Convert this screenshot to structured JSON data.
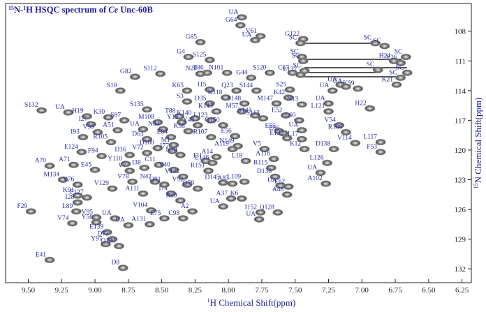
{
  "chart_data": {
    "type": "hsqc",
    "title": [
      "15",
      "N-",
      "1",
      "H HSQC spectrum of ",
      "Ce",
      " Unc-60B"
    ],
    "x_label": [
      "1",
      "H Chemical Shift(ppm)"
    ],
    "y_label": [
      "15",
      "N Chemical Shift(ppm)"
    ],
    "xlim": [
      9.67,
      6.18
    ],
    "ylim": [
      105.2,
      133.4
    ],
    "xticks": [
      {
        "value": 9.5,
        "label": "9.50"
      },
      9.25,
      {
        "value": 9.0,
        "label": "9.00"
      },
      8.75,
      {
        "value": 8.5,
        "label": "8.50"
      },
      8.25,
      {
        "value": 8.0,
        "label": "8.00"
      },
      7.75,
      {
        "value": 7.5,
        "label": "7.50"
      },
      7.25,
      {
        "value": 7.0,
        "label": "7.00"
      },
      6.75,
      {
        "value": 6.5,
        "label": "6.50"
      },
      6.25
    ],
    "yticks": [
      108,
      111,
      114,
      117,
      120,
      123,
      126,
      129,
      132
    ],
    "peak_color": "#8c8c8c",
    "peaks": [
      {
        "label": "G64",
        "x": 7.91,
        "y": 107.4
      },
      {
        "label": "UA",
        "x": 7.9,
        "y": 106.6
      },
      {
        "label": "V61",
        "x": 7.76,
        "y": 108.5
      },
      {
        "label": "UA",
        "x": 7.8,
        "y": 108.9
      },
      {
        "label": "G85",
        "x": 8.21,
        "y": 109.1
      },
      {
        "label": "G122",
        "x": 7.44,
        "y": 108.8
      },
      {
        "label": "SC",
        "x": 7.46,
        "y": 109.2
      },
      {
        "label": "SC",
        "x": 6.9,
        "y": 109.2
      },
      {
        "label": "SC",
        "x": 6.83,
        "y": 109.5
      },
      {
        "label": "SC",
        "x": 7.45,
        "y": 110.6
      },
      {
        "label": "G4",
        "x": 8.3,
        "y": 110.6
      },
      {
        "label": "S125",
        "x": 8.14,
        "y": 110.9
      },
      {
        "label": "T86",
        "x": 8.16,
        "y": 112.2
      },
      {
        "label": "N101",
        "x": 8.01,
        "y": 112.2
      },
      {
        "label": "S112",
        "x": 8.51,
        "y": 112.3
      },
      {
        "label": "G82",
        "x": 8.7,
        "y": 112.6
      },
      {
        "label": "N20",
        "x": 8.21,
        "y": 112.3
      },
      {
        "label": "G44",
        "x": 7.83,
        "y": 112.7
      },
      {
        "label": "S120",
        "x": 7.69,
        "y": 112.2
      },
      {
        "label": "H24",
        "x": 6.76,
        "y": 111.0
      },
      {
        "label": "SC",
        "x": 6.67,
        "y": 110.6
      },
      {
        "label": "Y26",
        "x": 6.71,
        "y": 111.2
      },
      {
        "label": "SC",
        "x": 7.44,
        "y": 111.0
      },
      {
        "label": "SC",
        "x": 7.43,
        "y": 112.0
      },
      {
        "label": "SC",
        "x": 6.88,
        "y": 111.9
      },
      {
        "label": "SC",
        "x": 6.66,
        "y": 112.2
      },
      {
        "label": "SC",
        "x": 6.71,
        "y": 112.7
      },
      {
        "label": "C67",
        "x": 7.52,
        "y": 112.2
      },
      {
        "label": "L137",
        "x": 7.46,
        "y": 112.4
      },
      {
        "label": "S10",
        "x": 8.81,
        "y": 114.0
      },
      {
        "label": "I15",
        "x": 8.14,
        "y": 113.9
      },
      {
        "label": "S25",
        "x": 7.54,
        "y": 113.9
      },
      {
        "label": "UA",
        "x": 7.22,
        "y": 114.0
      },
      {
        "label": "UA",
        "x": 7.16,
        "y": 113.4
      },
      {
        "label": "K59",
        "x": 7.03,
        "y": 113.8
      },
      {
        "label": "UA",
        "x": 7.12,
        "y": 113.6
      },
      {
        "label": "K21",
        "x": 6.74,
        "y": 113.4
      },
      {
        "label": "K65",
        "x": 8.31,
        "y": 114.0
      },
      {
        "label": "Q23",
        "x": 7.94,
        "y": 114.0
      },
      {
        "label": "S144",
        "x": 7.79,
        "y": 114.0
      },
      {
        "label": "K118",
        "x": 8.02,
        "y": 114.7
      },
      {
        "label": "S3",
        "x": 8.31,
        "y": 115.1
      },
      {
        "label": "D35",
        "x": 8.14,
        "y": 115.3
      },
      {
        "label": "M147",
        "x": 7.64,
        "y": 115.3
      },
      {
        "label": "K42",
        "x": 7.55,
        "y": 114.7
      },
      {
        "label": "S148",
        "x": 7.88,
        "y": 115.3
      },
      {
        "label": "N13",
        "x": 7.45,
        "y": 115.4
      },
      {
        "label": "UA",
        "x": 7.25,
        "y": 115.3
      },
      {
        "label": "S132",
        "x": 9.4,
        "y": 116.0
      },
      {
        "label": "UA",
        "x": 9.2,
        "y": 116.2
      },
      {
        "label": "H19",
        "x": 9.06,
        "y": 116.6
      },
      {
        "label": "K30",
        "x": 8.9,
        "y": 116.7
      },
      {
        "label": "S135",
        "x": 8.61,
        "y": 115.9
      },
      {
        "label": "T88",
        "x": 8.37,
        "y": 116.6
      },
      {
        "label": "K140",
        "x": 8.25,
        "y": 116.8
      },
      {
        "label": "K143",
        "x": 8.09,
        "y": 116.1
      },
      {
        "label": "M57",
        "x": 7.9,
        "y": 116.1
      },
      {
        "label": "S141",
        "x": 7.8,
        "y": 116.5
      },
      {
        "label": "S113",
        "x": 7.74,
        "y": 116.8
      },
      {
        "label": "E52",
        "x": 7.57,
        "y": 116.5
      },
      {
        "label": "L121",
        "x": 7.25,
        "y": 116.1
      },
      {
        "label": "H22",
        "x": 6.94,
        "y": 115.8
      },
      {
        "label": "S87",
        "x": 8.78,
        "y": 117.0
      },
      {
        "label": "M108",
        "x": 8.53,
        "y": 117.2
      },
      {
        "label": "N34",
        "x": 8.49,
        "y": 117.9
      },
      {
        "label": "UA",
        "x": 8.64,
        "y": 117.9
      },
      {
        "label": "D63",
        "x": 8.61,
        "y": 118.9
      },
      {
        "label": "I27",
        "x": 9.03,
        "y": 117.4
      },
      {
        "label": "I93",
        "x": 9.09,
        "y": 118.7
      },
      {
        "label": "V39",
        "x": 8.98,
        "y": 118.2
      },
      {
        "label": "A51",
        "x": 8.83,
        "y": 118.0
      },
      {
        "label": "Y15",
        "x": 8.35,
        "y": 117.2
      },
      {
        "label": "Y43",
        "x": 8.23,
        "y": 117.5
      },
      {
        "label": "L123",
        "x": 8.13,
        "y": 117.0
      },
      {
        "label": "K58",
        "x": 8.3,
        "y": 118.1
      },
      {
        "label": "E84",
        "x": 8.43,
        "y": 118.7
      },
      {
        "label": "M1",
        "x": 8.41,
        "y": 119.5
      },
      {
        "label": "R107",
        "x": 8.13,
        "y": 118.7
      },
      {
        "label": "Q150",
        "x": 8.04,
        "y": 117.5
      },
      {
        "label": "E56",
        "x": 7.95,
        "y": 118.6
      },
      {
        "label": "N149",
        "x": 7.93,
        "y": 119.6
      },
      {
        "label": "E55",
        "x": 7.62,
        "y": 118.1
      },
      {
        "label": "L60",
        "x": 7.47,
        "y": 117.0
      },
      {
        "label": "E66",
        "x": 7.59,
        "y": 118.3
      },
      {
        "label": "E133",
        "x": 7.56,
        "y": 118.8
      },
      {
        "label": "UA",
        "x": 7.45,
        "y": 118.0
      },
      {
        "label": "L17",
        "x": 7.45,
        "y": 118.9
      },
      {
        "label": "V54",
        "x": 7.17,
        "y": 117.5
      },
      {
        "label": "R106",
        "x": 7.12,
        "y": 118.2
      },
      {
        "label": "V114",
        "x": 7.05,
        "y": 119.3
      },
      {
        "label": "L117",
        "x": 6.86,
        "y": 119.2
      },
      {
        "label": "F53",
        "x": 6.86,
        "y": 120.2
      },
      {
        "label": "D138",
        "x": 7.21,
        "y": 119.9
      },
      {
        "label": "L126",
        "x": 7.26,
        "y": 121.3
      },
      {
        "label": "R105",
        "x": 8.88,
        "y": 119.2
      },
      {
        "label": "E124",
        "x": 9.1,
        "y": 120.2
      },
      {
        "label": "F94",
        "x": 8.95,
        "y": 120.6
      },
      {
        "label": "D16",
        "x": 8.74,
        "y": 120.5
      },
      {
        "label": "V72",
        "x": 8.61,
        "y": 120.3
      },
      {
        "label": "D100",
        "x": 8.53,
        "y": 119.8
      },
      {
        "label": "I77",
        "x": 8.42,
        "y": 120.1
      },
      {
        "label": "N90",
        "x": 8.36,
        "y": 120.5
      },
      {
        "label": "I31",
        "x": 8.17,
        "y": 121.1
      },
      {
        "label": "A14",
        "x": 8.09,
        "y": 120.7
      },
      {
        "label": "A119",
        "x": 7.97,
        "y": 119.9
      },
      {
        "label": "V5",
        "x": 7.73,
        "y": 119.9
      },
      {
        "label": "K12",
        "x": 7.43,
        "y": 119.9
      },
      {
        "label": "A70",
        "x": 9.34,
        "y": 121.6
      },
      {
        "label": "A71",
        "x": 9.16,
        "y": 121.5
      },
      {
        "label": "E45",
        "x": 9.0,
        "y": 122.0
      },
      {
        "label": "M134",
        "x": 9.24,
        "y": 123.0
      },
      {
        "label": "V76",
        "x": 9.13,
        "y": 123.5
      },
      {
        "label": "Y110",
        "x": 8.77,
        "y": 121.4
      },
      {
        "label": "V7",
        "x": 8.74,
        "y": 122.1
      },
      {
        "label": "I38",
        "x": 8.63,
        "y": 121.8
      },
      {
        "label": "C11",
        "x": 8.52,
        "y": 121.5
      },
      {
        "label": "V40",
        "x": 8.41,
        "y": 122.0
      },
      {
        "label": "V142",
        "x": 8.34,
        "y": 122.7
      },
      {
        "label": "L146",
        "x": 8.12,
        "y": 121.3
      },
      {
        "label": "R151",
        "x": 8.15,
        "y": 122.1
      },
      {
        "label": "L18",
        "x": 7.87,
        "y": 121.1
      },
      {
        "label": "A116",
        "x": 7.66,
        "y": 120.9
      },
      {
        "label": "R115",
        "x": 7.68,
        "y": 121.8
      },
      {
        "label": "N47",
        "x": 8.55,
        "y": 123.2
      },
      {
        "label": "I74",
        "x": 8.43,
        "y": 124.4
      },
      {
        "label": "Q81",
        "x": 8.48,
        "y": 123.5
      },
      {
        "label": "V92",
        "x": 8.31,
        "y": 123.5
      },
      {
        "label": "Q79",
        "x": 8.23,
        "y": 123.9
      },
      {
        "label": "D145",
        "x": 8.04,
        "y": 123.3
      },
      {
        "label": "A83",
        "x": 7.97,
        "y": 123.4
      },
      {
        "label": "L109",
        "x": 7.88,
        "y": 123.2
      },
      {
        "label": "D136",
        "x": 7.65,
        "y": 122.7
      },
      {
        "label": "UA",
        "x": 7.61,
        "y": 123.6
      },
      {
        "label": "E62",
        "x": 7.55,
        "y": 123.7
      },
      {
        "label": "A48",
        "x": 7.56,
        "y": 124.5
      },
      {
        "label": "UA",
        "x": 7.31,
        "y": 122.3
      },
      {
        "label": "A102",
        "x": 7.27,
        "y": 123.4
      },
      {
        "label": "V129",
        "x": 8.87,
        "y": 123.9
      },
      {
        "label": "V78",
        "x": 8.72,
        "y": 123.2
      },
      {
        "label": "K91",
        "x": 9.13,
        "y": 124.6
      },
      {
        "label": "I28",
        "x": 9.13,
        "y": 125.3
      },
      {
        "label": "F127",
        "x": 9.06,
        "y": 124.8
      },
      {
        "label": "A111",
        "x": 8.64,
        "y": 124.4
      },
      {
        "label": "R80",
        "x": 8.36,
        "y": 125.1
      },
      {
        "label": "A37",
        "x": 7.98,
        "y": 124.9
      },
      {
        "label": "K6",
        "x": 7.9,
        "y": 124.9
      },
      {
        "label": "F29",
        "x": 9.48,
        "y": 126.2
      },
      {
        "label": "L89",
        "x": 9.14,
        "y": 126.2
      },
      {
        "label": "V104",
        "x": 8.58,
        "y": 126.1
      },
      {
        "label": "V95",
        "x": 8.99,
        "y": 126.8
      },
      {
        "label": "I152",
        "x": 7.76,
        "y": 126.3
      },
      {
        "label": "UA",
        "x": 7.77,
        "y": 127.0
      },
      {
        "label": "Q128",
        "x": 7.63,
        "y": 126.3
      },
      {
        "label": "V74",
        "x": 9.17,
        "y": 127.4
      },
      {
        "label": "Y50",
        "x": 8.99,
        "y": 127.3
      },
      {
        "label": "UA",
        "x": 8.85,
        "y": 126.9
      },
      {
        "label": "UA",
        "x": 8.75,
        "y": 127.6
      },
      {
        "label": "A131",
        "x": 8.59,
        "y": 127.5
      },
      {
        "label": "E75",
        "x": 8.48,
        "y": 126.9
      },
      {
        "label": "A2",
        "x": 8.27,
        "y": 126.2
      },
      {
        "label": "C98",
        "x": 8.34,
        "y": 126.9
      },
      {
        "label": "UA",
        "x": 8.04,
        "y": 125.7
      },
      {
        "label": "E139",
        "x": 8.91,
        "y": 128.3
      },
      {
        "label": "D73",
        "x": 8.87,
        "y": 129.0
      },
      {
        "label": "Y97",
        "x": 8.92,
        "y": 129.5
      },
      {
        "label": "Q130",
        "x": 8.82,
        "y": 129.7
      },
      {
        "label": "E41",
        "x": 9.34,
        "y": 131.1
      },
      {
        "label": "D8",
        "x": 8.79,
        "y": 131.9
      }
    ]
  }
}
